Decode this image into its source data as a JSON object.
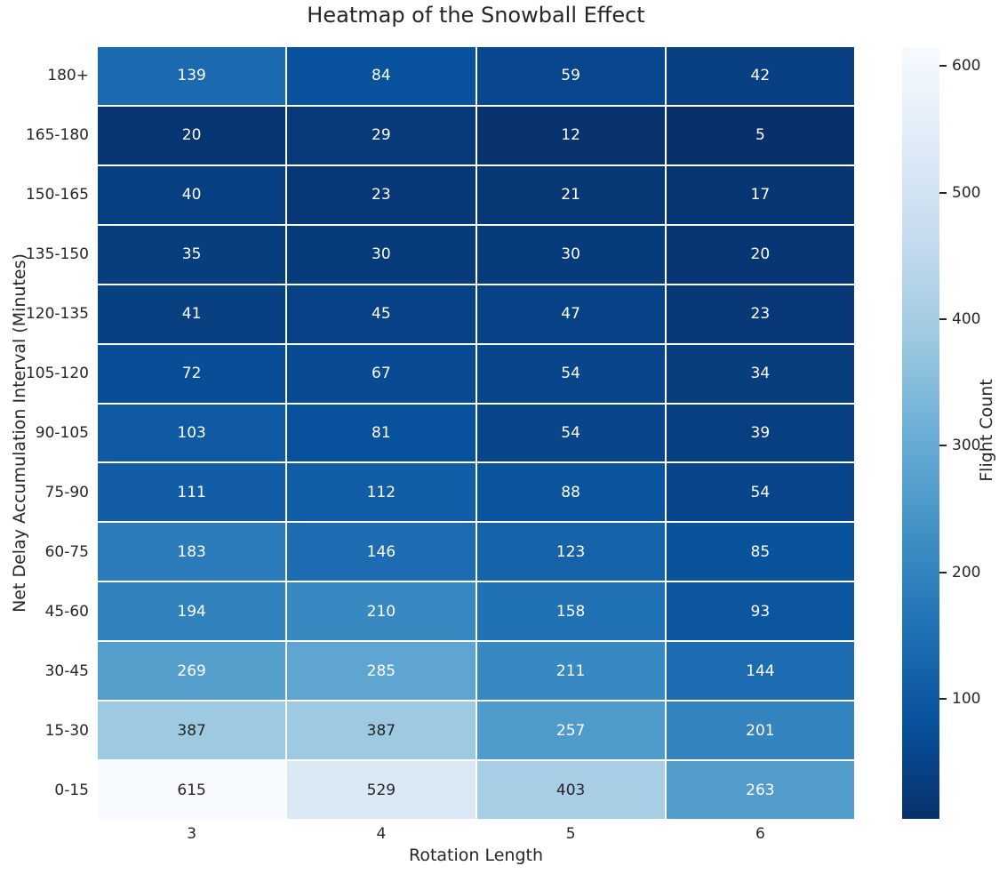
{
  "chart_data": {
    "type": "heatmap",
    "title": "Heatmap of the Snowball Effect",
    "xlabel": "Rotation Length",
    "ylabel": "Net Delay Accumulation Interval (Minutes)",
    "x_categories": [
      "3",
      "4",
      "5",
      "6"
    ],
    "y_categories": [
      "180+",
      "165-180",
      "150-165",
      "135-150",
      "120-135",
      "105-120",
      "90-105",
      "75-90",
      "60-75",
      "45-60",
      "30-45",
      "15-30",
      "0-15"
    ],
    "values": [
      [
        139,
        84,
        59,
        42
      ],
      [
        20,
        29,
        12,
        5
      ],
      [
        40,
        23,
        21,
        17
      ],
      [
        35,
        30,
        30,
        20
      ],
      [
        41,
        45,
        47,
        23
      ],
      [
        72,
        67,
        54,
        34
      ],
      [
        103,
        81,
        54,
        39
      ],
      [
        111,
        112,
        88,
        54
      ],
      [
        183,
        146,
        123,
        85
      ],
      [
        194,
        210,
        158,
        93
      ],
      [
        269,
        285,
        211,
        144
      ],
      [
        387,
        387,
        257,
        201
      ],
      [
        615,
        529,
        403,
        263
      ]
    ],
    "vmin": 5,
    "vmax": 615,
    "colormap": "Blues_r",
    "colormap_anchors_light_to_dark": [
      "#f7fbff",
      "#deebf7",
      "#c6dbef",
      "#9ecae1",
      "#6baed6",
      "#4292c6",
      "#2171b5",
      "#08519c",
      "#08306b"
    ],
    "grid_line_color": "#ffffff",
    "annotation_color_on_dark": "#ffffff",
    "annotation_color_on_light": "#262626",
    "colorbar": {
      "label": "Flight Count",
      "ticks": [
        100,
        200,
        300,
        400,
        500,
        600
      ]
    },
    "legend": "none",
    "grid": "white cell separators only"
  },
  "text_color": "#262626"
}
